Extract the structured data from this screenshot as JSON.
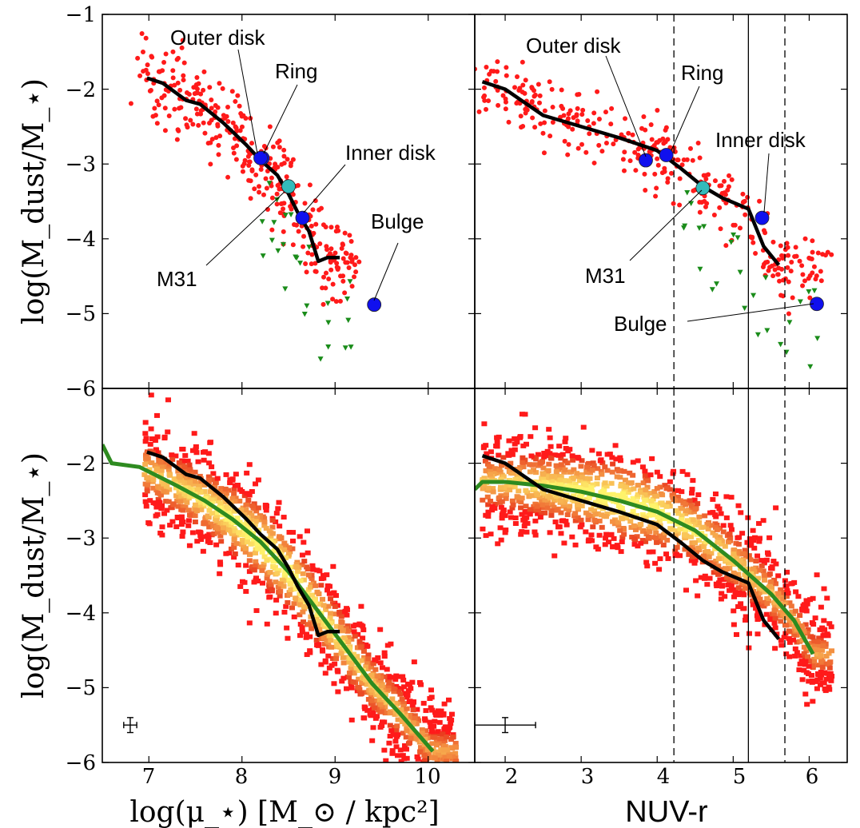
{
  "colors": {
    "points": "#ff1a1a",
    "upper_limits": "#1a8c1a",
    "median_line": "#000000",
    "model_line": "#2e8b20",
    "blue_markers": "#1010ee",
    "cyan_marker": "#33bbbb",
    "density_low": "#e8301a",
    "density_high": "#fff36b"
  },
  "axes": {
    "y_ticks": [
      "−1",
      "−2",
      "−3",
      "−4",
      "−5",
      "−6"
    ],
    "y_label_top": "log(M_dust/M_⋆)",
    "y_label_bottom": "log(M_dust/M_⋆)",
    "x_ticks_left": [
      "7",
      "8",
      "9",
      "10"
    ],
    "x_ticks_right": [
      "2",
      "3",
      "4",
      "5",
      "6"
    ],
    "x_label_left": "log(μ_⋆) [M_⊙ / kpc²]",
    "x_label_right": "NUV-r"
  },
  "chart_data": [
    {
      "panel": "top-left",
      "type": "scatter",
      "xlim": [
        6.5,
        10.5
      ],
      "ylim": [
        -6,
        -1
      ],
      "median_line": {
        "x": [
          6.98,
          7.15,
          7.4,
          7.55,
          7.8,
          8.05,
          8.2,
          8.38,
          8.5,
          8.6,
          8.72,
          8.82,
          8.92,
          9.05
        ],
        "y": [
          -1.85,
          -1.92,
          -2.15,
          -2.2,
          -2.45,
          -2.75,
          -2.95,
          -3.15,
          -3.4,
          -3.65,
          -3.9,
          -4.3,
          -4.25,
          -4.25
        ]
      },
      "markers": [
        {
          "name": "Outer disk",
          "x": 8.22,
          "y": -2.92,
          "color": "blue"
        },
        {
          "name": "Ring",
          "x": 8.2,
          "y": -2.92,
          "color": "blue"
        },
        {
          "name": "M31",
          "x": 8.5,
          "y": -3.3,
          "color": "cyan"
        },
        {
          "name": "Inner disk",
          "x": 8.65,
          "y": -3.72,
          "color": "blue"
        },
        {
          "name": "Bulge",
          "x": 9.42,
          "y": -4.88,
          "color": "blue"
        }
      ]
    },
    {
      "panel": "top-right",
      "type": "scatter",
      "xlim": [
        1.6,
        6.5
      ],
      "ylim": [
        -6,
        -1
      ],
      "vlines_dashed": [
        4.22,
        5.68
      ],
      "vline_solid": 5.2,
      "median_line": {
        "x": [
          1.7,
          2.0,
          2.5,
          3.0,
          3.5,
          4.0,
          4.3,
          4.6,
          4.85,
          5.2,
          5.4,
          5.6
        ],
        "y": [
          -1.9,
          -2.0,
          -2.35,
          -2.5,
          -2.65,
          -2.82,
          -3.05,
          -3.3,
          -3.45,
          -3.6,
          -4.1,
          -4.35
        ]
      },
      "markers": [
        {
          "name": "Outer disk",
          "x": 3.85,
          "y": -2.95,
          "color": "blue"
        },
        {
          "name": "Ring",
          "x": 4.12,
          "y": -2.88,
          "color": "blue"
        },
        {
          "name": "M31",
          "x": 4.6,
          "y": -3.32,
          "color": "cyan"
        },
        {
          "name": "Inner disk",
          "x": 5.38,
          "y": -3.72,
          "color": "blue"
        },
        {
          "name": "Bulge",
          "x": 6.1,
          "y": -4.87,
          "color": "blue"
        }
      ]
    },
    {
      "panel": "bottom-left",
      "type": "heatmap",
      "xlim": [
        6.5,
        10.5
      ],
      "ylim": [
        -6,
        -1
      ],
      "median_line": {
        "x": [
          6.98,
          7.15,
          7.4,
          7.55,
          7.8,
          8.05,
          8.2,
          8.38,
          8.5,
          8.6,
          8.72,
          8.82,
          8.92,
          9.05
        ],
        "y": [
          -1.85,
          -1.92,
          -2.15,
          -2.2,
          -2.45,
          -2.75,
          -2.95,
          -3.15,
          -3.4,
          -3.65,
          -3.9,
          -4.3,
          -4.25,
          -4.25
        ]
      },
      "model_line": {
        "x": [
          6.5,
          6.6,
          6.9,
          7.3,
          7.6,
          7.9,
          8.2,
          8.5,
          8.8,
          9.1,
          9.4,
          9.7,
          10.05
        ],
        "y": [
          -1.75,
          -2.0,
          -2.05,
          -2.3,
          -2.5,
          -2.75,
          -3.05,
          -3.45,
          -3.95,
          -4.45,
          -4.95,
          -5.35,
          -5.85
        ]
      },
      "error_bar": {
        "x": 6.8,
        "y": -5.5,
        "xerr": 0.07,
        "yerr": 0.1
      }
    },
    {
      "panel": "bottom-right",
      "type": "heatmap",
      "xlim": [
        1.6,
        6.5
      ],
      "ylim": [
        -6,
        -1
      ],
      "vlines_dashed": [
        4.22,
        5.68
      ],
      "vline_solid": 5.2,
      "median_line": {
        "x": [
          1.7,
          2.0,
          2.5,
          3.0,
          3.5,
          4.0,
          4.3,
          4.6,
          4.85,
          5.2,
          5.4,
          5.6
        ],
        "y": [
          -1.9,
          -2.0,
          -2.35,
          -2.5,
          -2.65,
          -2.82,
          -3.05,
          -3.3,
          -3.45,
          -3.6,
          -4.1,
          -4.35
        ]
      },
      "model_line": {
        "x": [
          1.6,
          1.7,
          2.0,
          2.5,
          3.0,
          3.5,
          4.0,
          4.5,
          5.0,
          5.5,
          5.8,
          6.05
        ],
        "y": [
          -2.35,
          -2.25,
          -2.25,
          -2.3,
          -2.38,
          -2.5,
          -2.65,
          -2.9,
          -3.3,
          -3.75,
          -4.1,
          -4.55
        ]
      },
      "error_bar": {
        "x": 2.0,
        "y": -5.5,
        "xerr": 0.4,
        "yerr": 0.1
      }
    }
  ]
}
